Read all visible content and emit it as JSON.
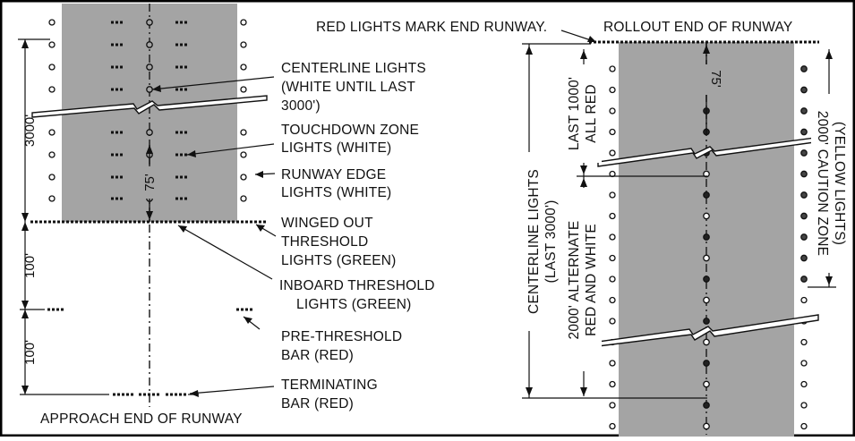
{
  "left_panel": {
    "callouts": {
      "centerline_lights": [
        "CENTERLINE LIGHTS",
        "(WHITE UNTIL LAST",
        "3000')"
      ],
      "touchdown_zone": [
        "TOUCHDOWN ZONE",
        "LIGHTS (WHITE)"
      ],
      "runway_edge": [
        "RUNWAY EDGE",
        "LIGHTS (WHITE)"
      ],
      "winged_out": [
        "WINGED OUT",
        "THRESHOLD",
        "LIGHTS (GREEN)"
      ],
      "inboard_threshold": [
        "INBOARD THRESHOLD",
        "LIGHTS (GREEN)"
      ],
      "pre_threshold": [
        "PRE-THRESHOLD",
        "BAR (RED)"
      ],
      "terminating": [
        "TERMINATING",
        "BAR (RED)"
      ]
    },
    "dimensions": {
      "d_3000": "3000'",
      "d_100_a": "100'",
      "d_100_b": "100'",
      "d_75": "75'"
    },
    "caption": "APPROACH END OF RUNWAY"
  },
  "right_panel": {
    "top_note": "RED LIGHTS MARK END RUNWAY.",
    "top_title": "ROLLOUT END OF RUNWAY",
    "centerline_lights": [
      "CENTERLINE LIGHTS",
      "(LAST 3000')"
    ],
    "last_1000": [
      "LAST 1000'",
      "ALL RED"
    ],
    "alternate": [
      "2000' ALTERNATE",
      "RED AND WHITE"
    ],
    "caution": [
      "2000' CAUTION ZONE",
      "(YELLOW LIGHTS)"
    ],
    "d_75": "75'"
  },
  "colors": {
    "runway": "#a4a4a4",
    "ink": "#111111",
    "frame": "#000000"
  }
}
